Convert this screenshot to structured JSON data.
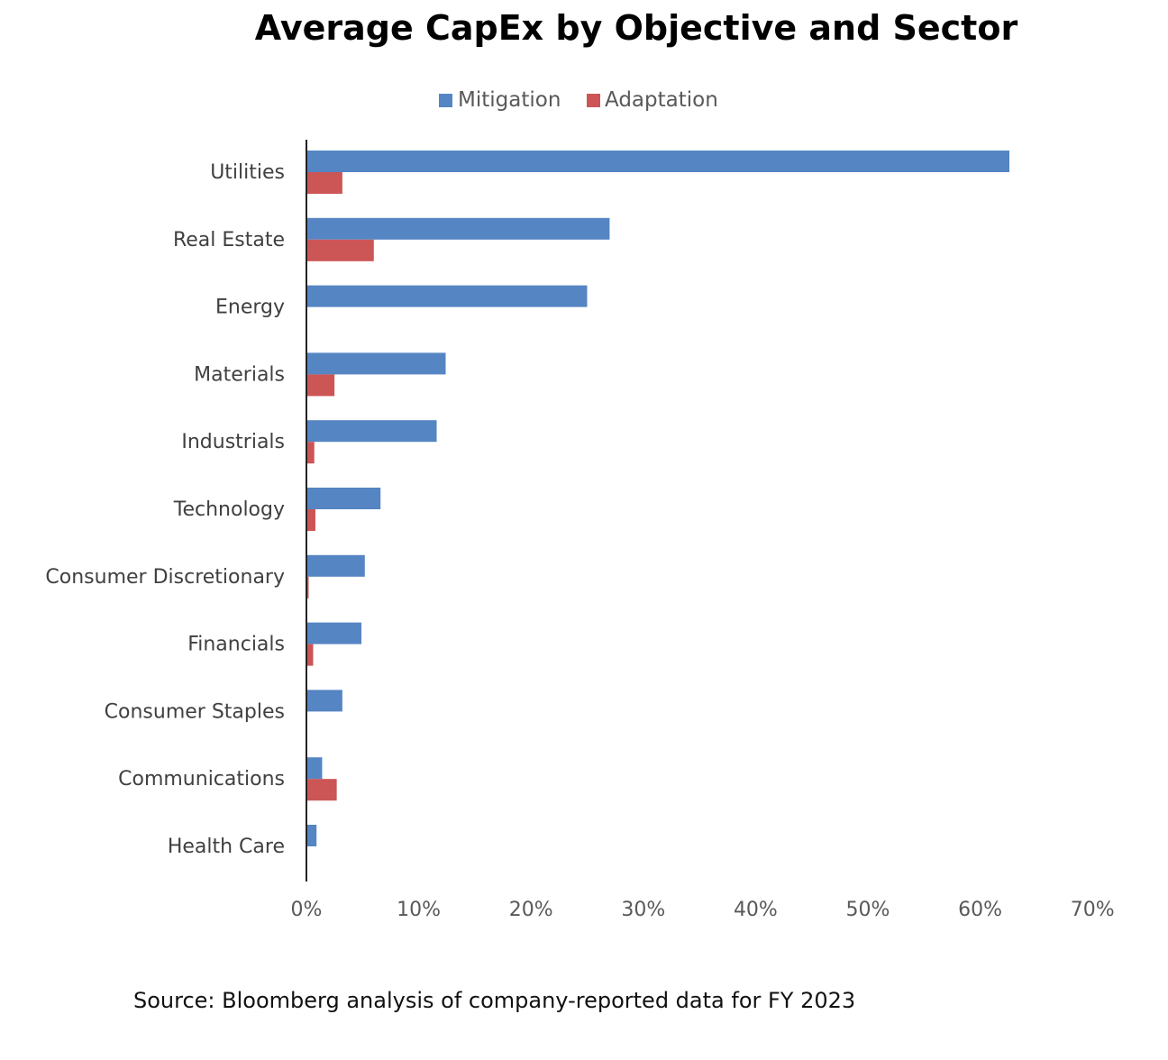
{
  "chart_data": {
    "type": "bar",
    "orientation": "horizontal",
    "title": "Average CapEx by Objective and Sector",
    "categories": [
      "Utilities",
      "Real Estate",
      "Energy",
      "Materials",
      "Industrials",
      "Technology",
      "Consumer Discretionary",
      "Financials",
      "Consumer Staples",
      "Communications",
      "Health Care"
    ],
    "series": [
      {
        "name": "Mitigation",
        "color": "#5585C3",
        "values": [
          62.6,
          27.0,
          25.0,
          12.4,
          11.6,
          6.6,
          5.2,
          4.9,
          3.2,
          1.4,
          0.9
        ]
      },
      {
        "name": "Adaptation",
        "color": "#CC5555",
        "values": [
          3.2,
          6.0,
          0,
          2.5,
          0.7,
          0.8,
          0.2,
          0.6,
          0,
          2.7,
          0
        ]
      }
    ],
    "xlim": [
      0,
      70
    ],
    "xticks": [
      0,
      10,
      20,
      30,
      40,
      50,
      60,
      70
    ],
    "xtick_labels": [
      "0%",
      "10%",
      "20%",
      "30%",
      "40%",
      "50%",
      "60%",
      "70%"
    ],
    "xlabel": "",
    "ylabel": "",
    "grid": false,
    "legend_position": "top-center"
  },
  "source": "Source: Bloomberg analysis of company-reported data for FY 2023"
}
